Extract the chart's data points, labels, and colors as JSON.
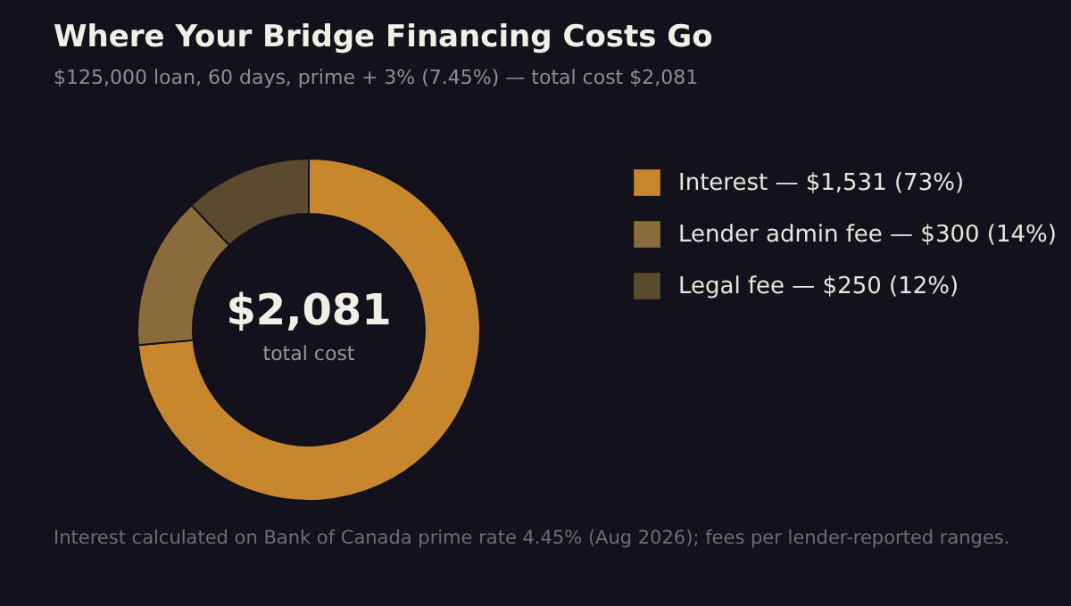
{
  "chart_data": {
    "type": "donut",
    "title": "Where Your Bridge Financing Costs Go",
    "subtitle": "$125,000 loan, 60 days, prime + 3% (7.45%) — total cost $2,081",
    "categories": [
      "Interest — $1,531 (73%)",
      "Lender admin fee — $300 (14%)",
      "Legal fee — $250 (12%)"
    ],
    "values": [
      1531,
      300,
      250
    ],
    "colors": [
      "#c8872c",
      "#8a6b3c",
      "#5c4a30"
    ],
    "legend": "right",
    "annotations": [
      "$2,081",
      "total cost",
      "Interest calculated on Bank of Canada prime rate 4.45% (Aug 2026); fees per lender-reported ranges."
    ]
  }
}
